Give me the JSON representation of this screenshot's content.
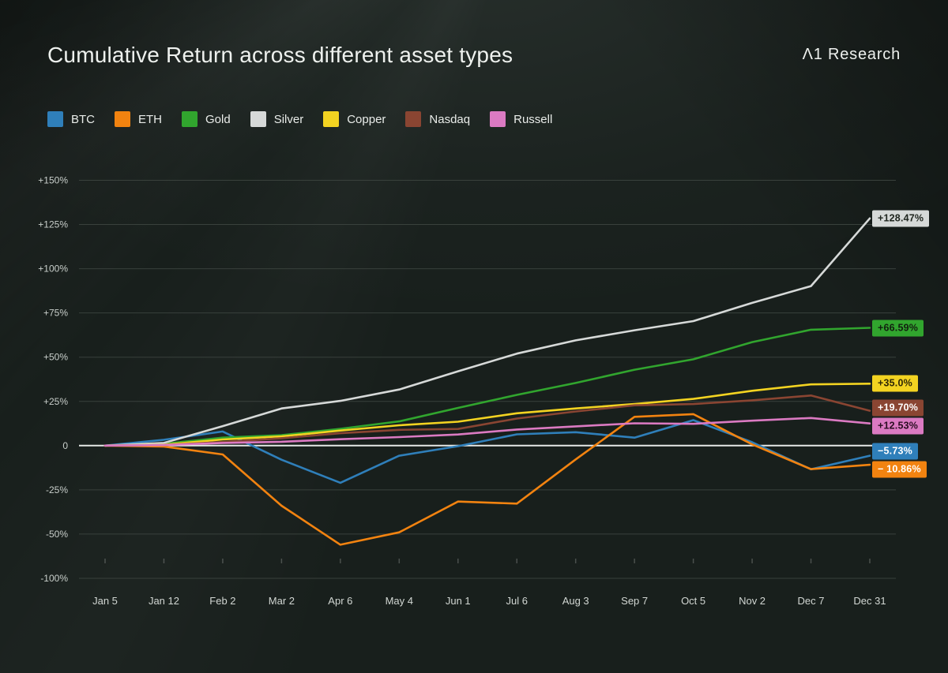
{
  "header": {
    "title": "Cumulative Return across different asset types",
    "brand": "Λ1 Research"
  },
  "colors": {
    "background": "#181f1c",
    "grid": "#39413c",
    "zero_line": "#e6e9e7",
    "title_text": "#eef1ee",
    "axis_text": "#ccd2ce"
  },
  "chart_data": {
    "type": "line",
    "title": "Cumulative Return across different asset types",
    "legend_position": "top-left",
    "grid": true,
    "unit": "%",
    "ylim": [
      -100,
      150
    ],
    "y_tick_labels": [
      "+150%",
      "+125%",
      "+100%",
      "+75%",
      "+50%",
      "+25%",
      "0",
      "-25%",
      "-50%",
      "-100%"
    ],
    "x_labels": [
      "Jan 5",
      "Jan 12",
      "Feb 2",
      "Mar 2",
      "Apr 6",
      "May 4",
      "Jun 1",
      "Jul 6",
      "Aug 3",
      "Sep 7",
      "Oct 5",
      "Nov 2",
      "Dec 7",
      "Dec 31"
    ],
    "series": [
      {
        "name": "BTC",
        "color": "#2f7fba",
        "end_label": "−5.73%",
        "end_label_text_color": "#ffffff",
        "values": [
          0,
          3.3,
          8,
          -8,
          -21,
          -5.7,
          -0.3,
          6.4,
          7.6,
          4.5,
          14.4,
          1.9,
          -13.4,
          -5.73
        ]
      },
      {
        "name": "ETH",
        "color": "#f28310",
        "end_label": "− 10.86%",
        "end_label_text_color": "#ffffff",
        "values": [
          0,
          -0.5,
          -5,
          -34,
          -56,
          -49,
          -31.6,
          -32.8,
          -7.8,
          16.3,
          17.8,
          0.7,
          -13.3,
          -10.86
        ]
      },
      {
        "name": "Gold",
        "color": "#31a52e",
        "end_label": "+66.59%",
        "end_label_text_color": "#12200f",
        "values": [
          0,
          1,
          4.5,
          5.9,
          9.5,
          13.7,
          21.3,
          28.7,
          35.4,
          42.9,
          48.8,
          58.5,
          65.5,
          66.59
        ]
      },
      {
        "name": "Silver",
        "color": "#d6d9d8",
        "end_label": "+128.47%",
        "end_label_text_color": "#20261f",
        "values": [
          0,
          1.5,
          11,
          21,
          25.3,
          31.7,
          42,
          52,
          59.5,
          65.2,
          70.4,
          80.7,
          90.2,
          128.47
        ]
      },
      {
        "name": "Copper",
        "color": "#f3d321",
        "end_label": "+35.0%",
        "end_label_text_color": "#2e2706",
        "values": [
          0,
          0.5,
          3.5,
          5.2,
          8.5,
          11.5,
          13.5,
          18.3,
          21,
          23.5,
          26.4,
          31,
          34.6,
          35.0
        ]
      },
      {
        "name": "Nasdaq",
        "color": "#8a4532",
        "end_label": "+19.70%",
        "end_label_text_color": "#ffffff",
        "values": [
          0,
          0.3,
          2,
          4.2,
          7,
          8.9,
          9.4,
          15.3,
          19.3,
          22.8,
          23.5,
          25.6,
          28.3,
          19.7
        ]
      },
      {
        "name": "Russell",
        "color": "#db7ac2",
        "end_label": "+12.53%",
        "end_label_text_color": "#2a0e22",
        "values": [
          0,
          0.3,
          1.5,
          2.2,
          3.6,
          4.8,
          6.3,
          9.1,
          10.9,
          12.6,
          12.3,
          14.1,
          15.6,
          12.53
        ]
      }
    ]
  }
}
